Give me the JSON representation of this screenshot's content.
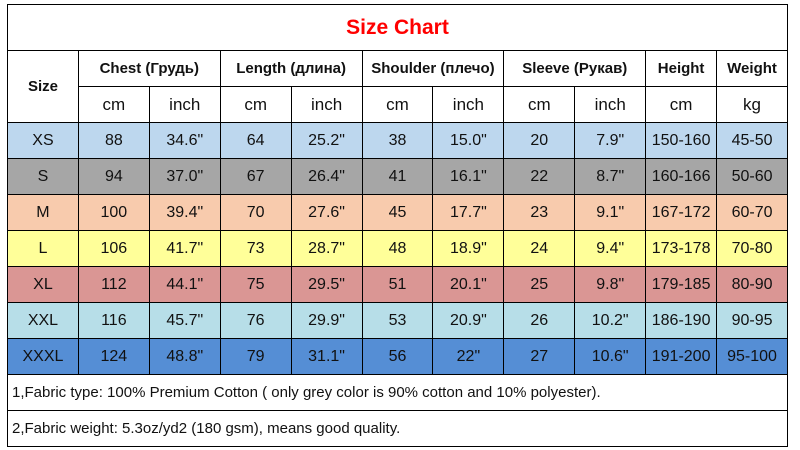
{
  "title": "Size Chart",
  "headers": {
    "size": "Size",
    "chest": "Chest  (Грудь)",
    "length": "Length (длина)",
    "shoulder": "Shoulder (плечо)",
    "sleeve": "Sleeve (Рукав)",
    "height": "Height",
    "weight": "Weight"
  },
  "units": [
    "cm",
    "inch",
    "cm",
    "inch",
    "cm",
    "inch",
    "cm",
    "inch",
    "cm",
    "kg"
  ],
  "rows": [
    {
      "color": "#bdd7ee",
      "cells": [
        "XS",
        "88",
        "34.6\"",
        "64",
        "25.2\"",
        "38",
        "15.0\"",
        "20",
        "7.9\"",
        "150-160",
        "45-50"
      ]
    },
    {
      "color": "#a6a6a6",
      "cells": [
        "S",
        "94",
        "37.0\"",
        "67",
        "26.4\"",
        "41",
        "16.1\"",
        "22",
        "8.7\"",
        "160-166",
        "50-60"
      ]
    },
    {
      "color": "#f8cbad",
      "cells": [
        "M",
        "100",
        "39.4\"",
        "70",
        "27.6\"",
        "45",
        "17.7\"",
        "23",
        "9.1\"",
        "167-172",
        "60-70"
      ]
    },
    {
      "color": "#ffff99",
      "cells": [
        "L",
        "106",
        "41.7\"",
        "73",
        "28.7\"",
        "48",
        "18.9\"",
        "24",
        "9.4\"",
        "173-178",
        "70-80"
      ]
    },
    {
      "color": "#da9694",
      "cells": [
        "XL",
        "112",
        "44.1\"",
        "75",
        "29.5\"",
        "51",
        "20.1\"",
        "25",
        "9.8\"",
        "179-185",
        "80-90"
      ]
    },
    {
      "color": "#b7dee8",
      "cells": [
        "XXL",
        "116",
        "45.7\"",
        "76",
        "29.9\"",
        "53",
        "20.9\"",
        "26",
        "10.2\"",
        "186-190",
        "90-95"
      ]
    },
    {
      "color": "#558ed5",
      "cells": [
        "XXXL",
        "124",
        "48.8\"",
        "79",
        "31.1\"",
        "56",
        "22\"",
        "27",
        "10.6\"",
        "191-200",
        "95-100"
      ]
    }
  ],
  "notes": [
    "1,Fabric type: 100% Premium Cotton ( only grey color is 90% cotton and 10% polyester).",
    "2,Fabric weight: 5.3oz/yd2 (180 gsm), means good quality."
  ]
}
